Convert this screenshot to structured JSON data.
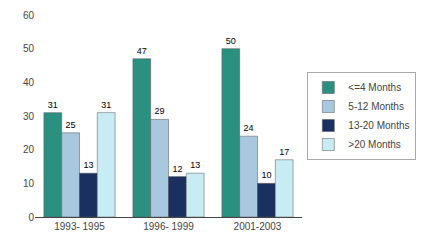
{
  "chart_data": {
    "type": "bar",
    "categories": [
      "1993- 1995",
      "1996- 1999",
      "2001-2003"
    ],
    "series": [
      {
        "name": "<=4 Months",
        "color": "#2a9080",
        "values": [
          31,
          47,
          50
        ]
      },
      {
        "name": "5-12 Months",
        "color": "#a8c8e0",
        "values": [
          25,
          29,
          24
        ]
      },
      {
        "name": "13-20 Months",
        "color": "#1a3060",
        "values": [
          13,
          12,
          10
        ]
      },
      {
        "name": ">20 Months",
        "color": "#c8ecf4",
        "values": [
          31,
          13,
          17
        ]
      }
    ],
    "ylim": [
      0,
      60
    ],
    "yticks": [
      0,
      10,
      20,
      30,
      40,
      50,
      60
    ],
    "grid": false,
    "data_labels": true,
    "legend": "right"
  }
}
